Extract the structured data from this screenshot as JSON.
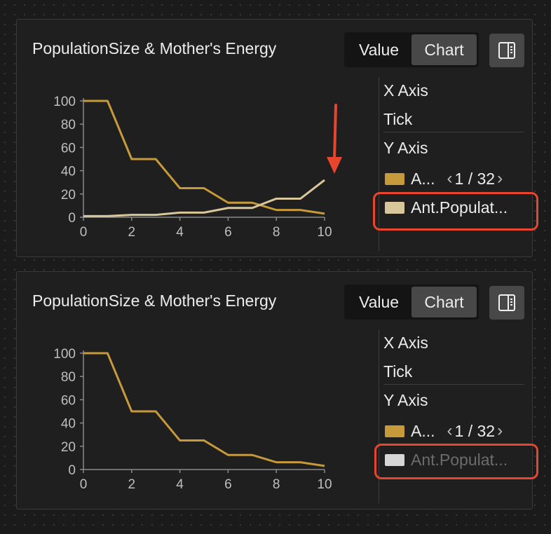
{
  "colors": {
    "series_energy": "#c69a3a",
    "series_population": "#d9c79c",
    "series_population_hidden": "#d6d6d6",
    "annotation": "#e8452f",
    "grid_text": "#bfbfbf"
  },
  "panels": [
    {
      "title": "PopulationSize & Mother's Energy",
      "tabs": [
        {
          "label": "Value",
          "active": false
        },
        {
          "label": "Chart",
          "active": true
        }
      ],
      "toggle_icon": "sidebar-toggle-icon",
      "sidebar": {
        "x_axis_label": "X Axis",
        "tick_label": "Tick",
        "y_axis_label": "Y Axis",
        "legend": [
          {
            "label": "A...",
            "color": "#c69a3a",
            "hidden": false
          },
          {
            "label": "Ant.Populat...",
            "color": "#d9c79c",
            "hidden": false
          }
        ],
        "pager": {
          "prev_icon": "chevron-left-icon",
          "text": "1 / 32",
          "next_icon": "chevron-right-icon"
        }
      },
      "chart_data": {
        "type": "line",
        "x": [
          0,
          1,
          2,
          3,
          4,
          5,
          6,
          7,
          8,
          9,
          10
        ],
        "x_ticks": [
          "0",
          "2",
          "4",
          "6",
          "8",
          "10"
        ],
        "y_ticks": [
          "0",
          "20",
          "40",
          "60",
          "80",
          "100"
        ],
        "xlim": [
          0,
          10
        ],
        "ylim": [
          0,
          100
        ],
        "series": [
          {
            "values": [
              100,
              100,
              50,
              50,
              25,
              25,
              12.5,
              12.5,
              6.25,
              6.25,
              3.1
            ],
            "color": "#c69a3a"
          },
          {
            "values": [
              1,
              1,
              2,
              2,
              4,
              4,
              8,
              8,
              16,
              16,
              32
            ],
            "color": "#d9c79c"
          }
        ]
      }
    },
    {
      "title": "PopulationSize & Mother's Energy",
      "tabs": [
        {
          "label": "Value",
          "active": false
        },
        {
          "label": "Chart",
          "active": true
        }
      ],
      "toggle_icon": "sidebar-toggle-icon",
      "sidebar": {
        "x_axis_label": "X Axis",
        "tick_label": "Tick",
        "y_axis_label": "Y Axis",
        "legend": [
          {
            "label": "A...",
            "color": "#c69a3a",
            "hidden": false
          },
          {
            "label": "Ant.Populat...",
            "color": "#d6d6d6",
            "hidden": true
          }
        ],
        "pager": {
          "prev_icon": "chevron-left-icon",
          "text": "1 / 32",
          "next_icon": "chevron-right-icon"
        }
      },
      "chart_data": {
        "type": "line",
        "x": [
          0,
          1,
          2,
          3,
          4,
          5,
          6,
          7,
          8,
          9,
          10
        ],
        "x_ticks": [
          "0",
          "2",
          "4",
          "6",
          "8",
          "10"
        ],
        "y_ticks": [
          "0",
          "20",
          "40",
          "60",
          "80",
          "100"
        ],
        "xlim": [
          0,
          10
        ],
        "ylim": [
          0,
          100
        ],
        "series": [
          {
            "values": [
              100,
              100,
              50,
              50,
              25,
              25,
              12.5,
              12.5,
              6.25,
              6.25,
              3.1
            ],
            "color": "#c69a3a"
          }
        ]
      }
    }
  ]
}
